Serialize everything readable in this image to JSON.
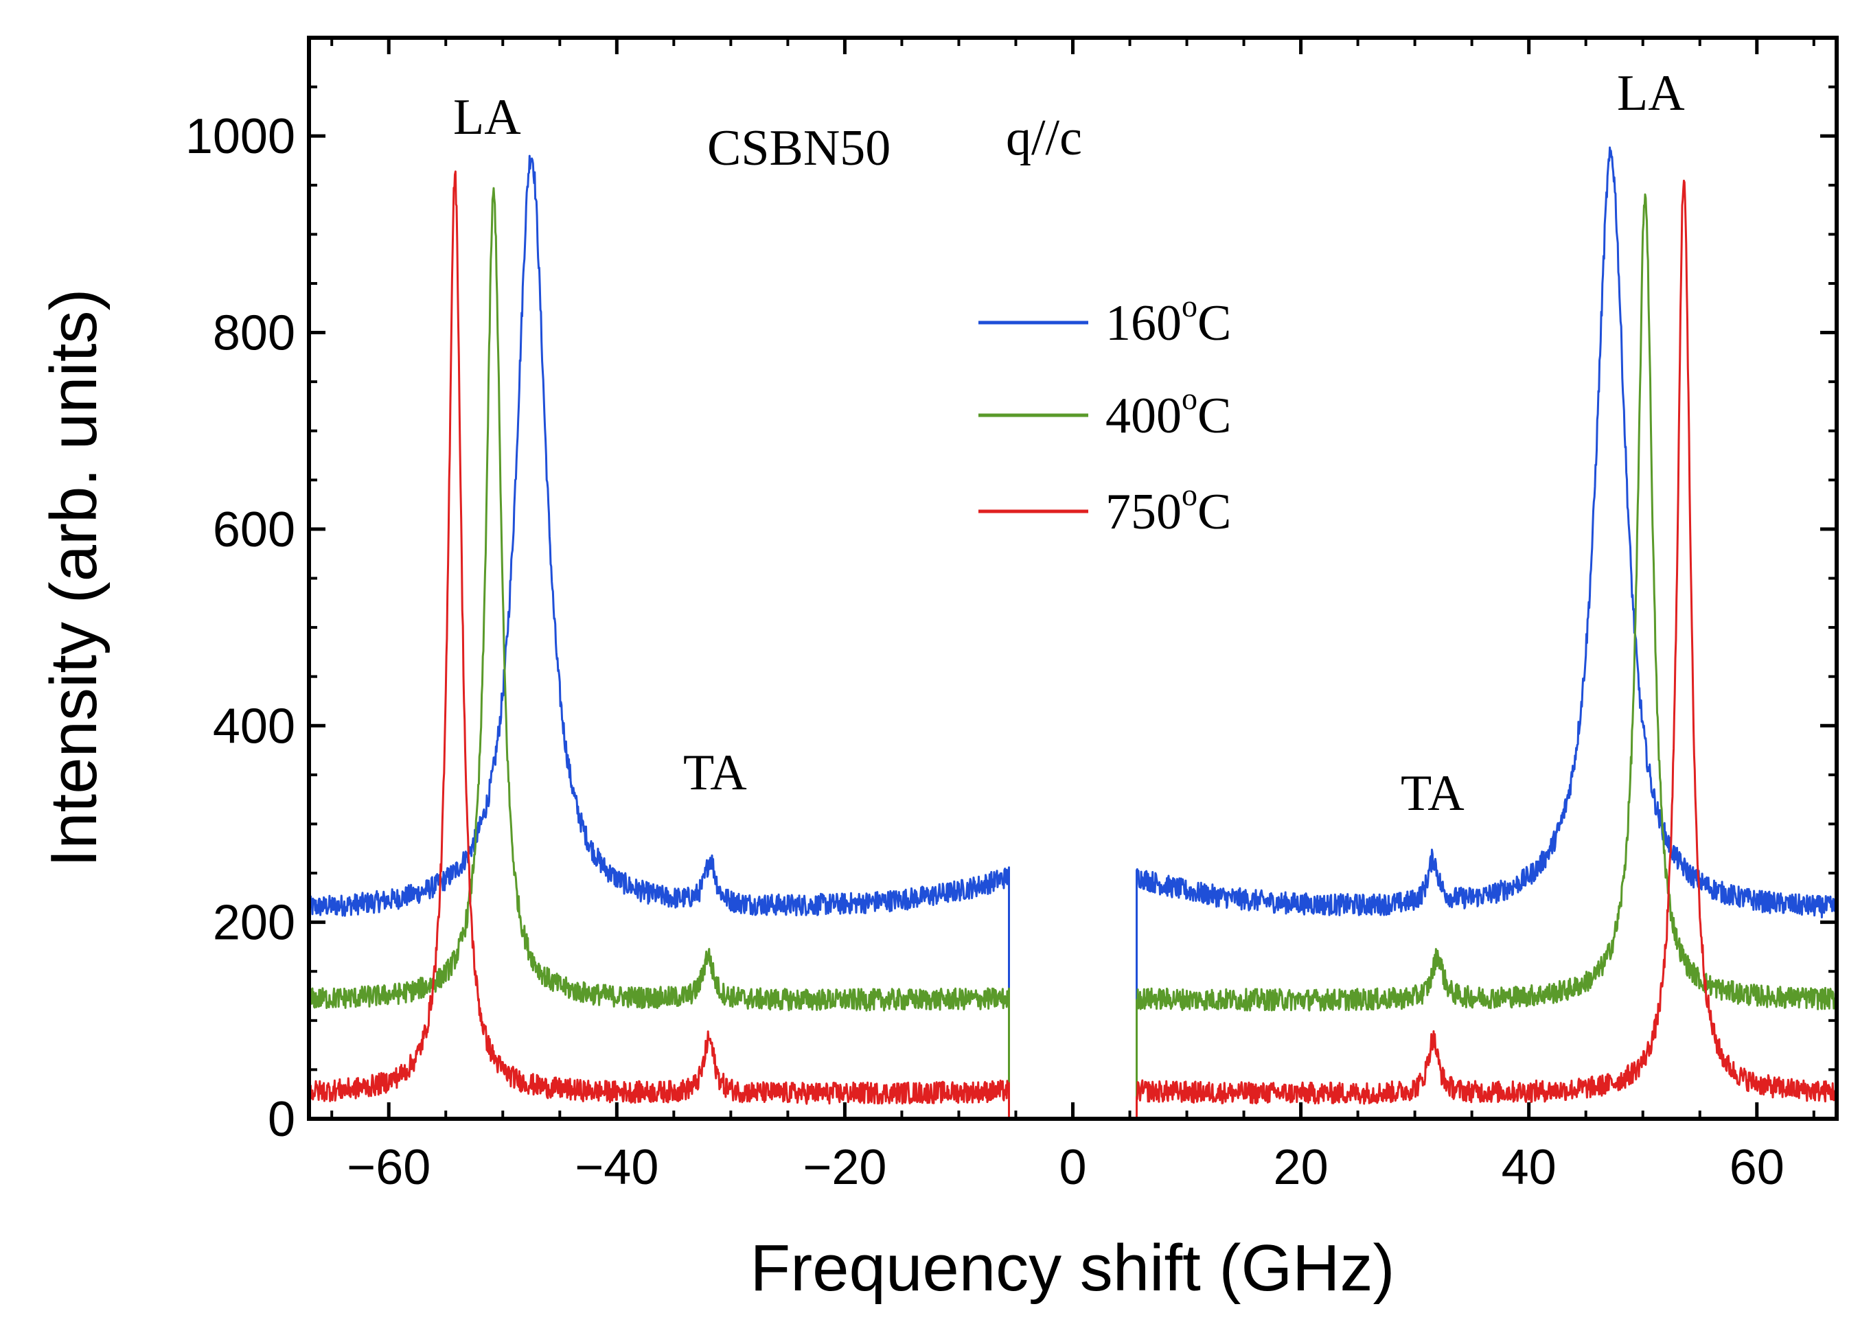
{
  "chart_data": {
    "type": "line",
    "title": "",
    "xlabel": "Frequency shift (GHz)",
    "ylabel": "Intensity (arb. units)",
    "xlim": [
      -67,
      67
    ],
    "ylim": [
      0,
      1100
    ],
    "x_ticks": [
      -60,
      -40,
      -20,
      0,
      20,
      40,
      60
    ],
    "x_tick_labels": [
      "−60",
      "−40",
      "−20",
      "0",
      "20",
      "40",
      "60"
    ],
    "y_ticks": [
      0,
      200,
      400,
      600,
      800,
      1000
    ],
    "y_tick_labels": [
      "0",
      "200",
      "400",
      "600",
      "800",
      "1000"
    ],
    "grid": false,
    "legend_position": "upper-center",
    "gap_region": [
      -5.6,
      5.6
    ],
    "annotations": {
      "sample": "CSBN50",
      "direction": "q//c",
      "la_left": "LA",
      "la_right": "LA",
      "ta_left": "TA",
      "ta_right": "TA"
    },
    "series": [
      {
        "name": "160°C",
        "label_main": "160",
        "label_sup": "o",
        "label_unit": "C",
        "color": "#1f4fd8",
        "baseline": 210,
        "baseline_near_center": 245,
        "la_left_x": -47.5,
        "la_right_x": 47.2,
        "la_peak": 980,
        "la_width": 1.6,
        "ta_x": [
          -31.8,
          31.6
        ],
        "ta_peak": 45
      },
      {
        "name": "400°C",
        "label_main": "400",
        "label_sup": "o",
        "label_unit": "C",
        "color": "#5a9a2a",
        "baseline": 120,
        "baseline_near_center": 122,
        "la_left_x": -50.8,
        "la_right_x": 50.2,
        "la_peak": 940,
        "la_width": 0.8,
        "ta_x": [
          -32.0,
          32.0
        ],
        "ta_peak": 45
      },
      {
        "name": "750°C",
        "label_main": "750",
        "label_sup": "o",
        "label_unit": "C",
        "color": "#e02020",
        "baseline": 25,
        "baseline_near_center": 28,
        "la_left_x": -54.2,
        "la_right_x": 53.6,
        "la_peak": 960,
        "la_width": 0.7,
        "ta_x": [
          -31.9,
          31.6
        ],
        "ta_peak": 55
      }
    ]
  }
}
